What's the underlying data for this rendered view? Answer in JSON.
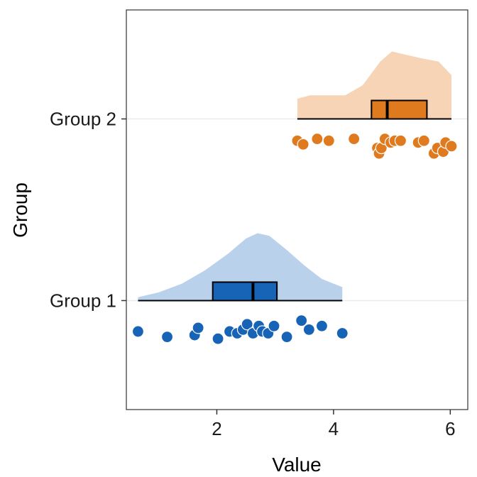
{
  "chart_data": {
    "type": "raincloud",
    "title": "",
    "xlabel": "Value",
    "ylabel": "Group",
    "xlim": [
      0.45,
      6.3
    ],
    "ylim": [
      0.4,
      2.6
    ],
    "x_ticks": [
      2,
      4,
      6
    ],
    "y_ticks": [
      {
        "value": 1,
        "label": "Group 1"
      },
      {
        "value": 2,
        "label": "Group 2"
      }
    ],
    "grid": "horizontal-major",
    "groups": [
      {
        "label": "Group 1",
        "y": 1,
        "color": "#1763b5",
        "density_color": "#b9d1eb",
        "range": [
          0.65,
          4.15
        ],
        "box": {
          "q1": 1.93,
          "median": 2.62,
          "q3": 3.03
        },
        "density": [
          [
            0.65,
            0.05
          ],
          [
            1.0,
            0.12
          ],
          [
            1.4,
            0.25
          ],
          [
            1.8,
            0.45
          ],
          [
            2.2,
            0.7
          ],
          [
            2.5,
            0.92
          ],
          [
            2.7,
            1.0
          ],
          [
            2.9,
            0.96
          ],
          [
            3.2,
            0.75
          ],
          [
            3.5,
            0.52
          ],
          [
            3.8,
            0.32
          ],
          [
            4.15,
            0.2
          ]
        ],
        "points": [
          [
            0.65,
            0.83
          ],
          [
            1.15,
            0.8
          ],
          [
            1.62,
            0.81
          ],
          [
            1.68,
            0.85
          ],
          [
            2.02,
            0.79
          ],
          [
            2.22,
            0.83
          ],
          [
            2.35,
            0.82
          ],
          [
            2.45,
            0.84
          ],
          [
            2.52,
            0.87
          ],
          [
            2.62,
            0.82
          ],
          [
            2.72,
            0.86
          ],
          [
            2.78,
            0.83
          ],
          [
            2.88,
            0.82
          ],
          [
            2.98,
            0.86
          ],
          [
            3.2,
            0.8
          ],
          [
            3.45,
            0.89
          ],
          [
            3.58,
            0.84
          ],
          [
            3.8,
            0.86
          ],
          [
            4.15,
            0.82
          ]
        ]
      },
      {
        "label": "Group 2",
        "y": 2,
        "color": "#e07a1f",
        "density_color": "#f7d4b6",
        "range": [
          3.38,
          6.02
        ],
        "box": {
          "q1": 4.65,
          "median": 4.92,
          "q3": 5.6
        },
        "density": [
          [
            3.38,
            0.3
          ],
          [
            3.6,
            0.35
          ],
          [
            3.9,
            0.35
          ],
          [
            4.2,
            0.35
          ],
          [
            4.5,
            0.5
          ],
          [
            4.8,
            0.85
          ],
          [
            5.0,
            1.0
          ],
          [
            5.2,
            0.96
          ],
          [
            5.5,
            0.9
          ],
          [
            5.8,
            0.85
          ],
          [
            6.02,
            0.65
          ]
        ],
        "points": [
          [
            3.38,
            1.88
          ],
          [
            3.48,
            1.86
          ],
          [
            3.72,
            1.89
          ],
          [
            3.92,
            1.88
          ],
          [
            4.35,
            1.89
          ],
          [
            4.75,
            1.84
          ],
          [
            4.78,
            1.81
          ],
          [
            4.82,
            1.84
          ],
          [
            4.88,
            1.89
          ],
          [
            4.98,
            1.87
          ],
          [
            5.05,
            1.88
          ],
          [
            5.15,
            1.88
          ],
          [
            5.45,
            1.87
          ],
          [
            5.55,
            1.88
          ],
          [
            5.72,
            1.81
          ],
          [
            5.78,
            1.84
          ],
          [
            5.88,
            1.82
          ],
          [
            5.92,
            1.87
          ],
          [
            6.02,
            1.85
          ]
        ]
      }
    ]
  }
}
